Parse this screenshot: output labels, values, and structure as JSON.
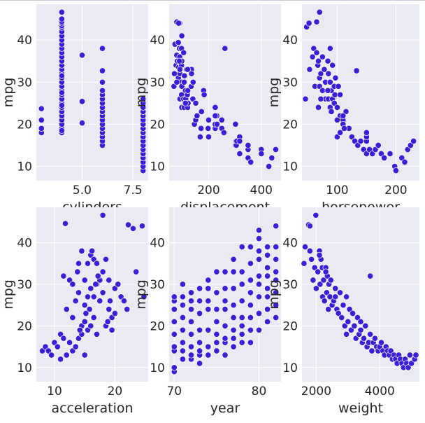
{
  "chart_data": [
    {
      "type": "scatter",
      "xlabel": "cylinders",
      "ylabel": "mpg",
      "xlim": [
        2.75,
        8.25
      ],
      "ylim": [
        6.6,
        48.5
      ],
      "xticks": [
        5.0,
        7.5
      ],
      "xtick_labels": [
        "5.0",
        "7.5"
      ],
      "yticks": [
        10,
        20,
        30,
        40
      ],
      "ytick_labels": [
        "10",
        "20",
        "30",
        "40"
      ],
      "x": [
        3,
        3,
        3,
        3,
        4,
        4,
        4,
        4,
        4,
        4,
        4,
        4,
        4,
        4,
        4,
        4,
        4,
        4,
        4,
        4,
        4,
        4,
        4,
        4,
        4,
        4,
        4,
        4,
        4,
        4,
        4,
        4,
        4,
        4,
        4,
        4,
        4,
        4,
        4,
        5,
        5,
        5,
        6,
        6,
        6,
        6,
        6,
        6,
        6,
        6,
        6,
        6,
        6,
        6,
        6,
        6,
        6,
        6,
        6,
        8,
        8,
        8,
        8,
        8,
        8,
        8,
        8,
        8,
        8,
        8,
        8,
        8,
        8,
        8,
        8,
        8,
        8
      ],
      "y": [
        18,
        19,
        21,
        23.7,
        18,
        19,
        20,
        21,
        22,
        23,
        24,
        25,
        26,
        27,
        28,
        29,
        30,
        31,
        32,
        33,
        34,
        35,
        36,
        37,
        38,
        39,
        40,
        41,
        42,
        43,
        43.4,
        44,
        44.3,
        45,
        46.6,
        18.5,
        24.5,
        27.5,
        31.5,
        20.3,
        25.4,
        36.4,
        15,
        16,
        17,
        18,
        19,
        20,
        21,
        22,
        23,
        24,
        25,
        26,
        27,
        28,
        30,
        32.7,
        38,
        9,
        10,
        11,
        12,
        13,
        14,
        15,
        16,
        17,
        18,
        19,
        20,
        21,
        22,
        23,
        24,
        25,
        26
      ]
    },
    {
      "type": "scatter",
      "xlabel": "displacement",
      "ylabel": "mpg",
      "xlim": [
        50,
        475
      ],
      "ylim": [
        6.6,
        48.5
      ],
      "xticks": [
        200,
        400
      ],
      "xtick_labels": [
        "200",
        "400"
      ],
      "yticks": [
        10,
        20,
        30,
        40
      ],
      "ytick_labels": [
        "10",
        "20",
        "30",
        "40"
      ],
      "x": [
        68,
        70,
        72,
        76,
        79,
        79,
        81,
        85,
        85,
        86,
        89,
        90,
        90,
        91,
        91,
        97,
        97,
        97,
        98,
        98,
        98,
        98,
        105,
        107,
        108,
        112,
        113,
        116,
        119,
        120,
        121,
        122,
        134,
        135,
        140,
        140,
        141,
        146,
        151,
        156,
        168,
        171,
        173,
        181,
        183,
        198,
        200,
        200,
        225,
        225,
        225,
        231,
        232,
        250,
        250,
        258,
        262,
        302,
        302,
        304,
        305,
        307,
        318,
        318,
        318,
        350,
        350,
        350,
        360,
        400,
        400,
        429,
        440,
        455,
        97,
        91,
        89,
        79,
        86,
        105,
        107,
        112,
        120,
        135,
        151,
        225
      ],
      "y": [
        29,
        32,
        39,
        34,
        36.4,
        44.3,
        35,
        39.4,
        31,
        33.5,
        38,
        44,
        36,
        26,
        32,
        27,
        30,
        34,
        24,
        29,
        35,
        41,
        26,
        24,
        31.5,
        28,
        26,
        33,
        27,
        24,
        28,
        25,
        29,
        33,
        26,
        30,
        30,
        20,
        21,
        22,
        17,
        19,
        23,
        28,
        27,
        19,
        21,
        17,
        19,
        20,
        24,
        22,
        20,
        19,
        21,
        18,
        38,
        20,
        15,
        16,
        15,
        16,
        17,
        13,
        16,
        14,
        15,
        12,
        11,
        14,
        13,
        10,
        12,
        14,
        38,
        33,
        35,
        30,
        44,
        37,
        30,
        25,
        33,
        32,
        25,
        22
      ]
    },
    {
      "type": "scatter",
      "xlabel": "horsepower",
      "ylabel": "mpg",
      "xlim": [
        40,
        240
      ],
      "ylim": [
        6.6,
        48.5
      ],
      "xticks": [
        100,
        200
      ],
      "xtick_labels": [
        "100",
        "200"
      ],
      "yticks": [
        10,
        20,
        30,
        40
      ],
      "ytick_labels": [
        "10",
        "20",
        "30",
        "40"
      ],
      "x": [
        46,
        48,
        52,
        53,
        58,
        60,
        62,
        65,
        65,
        67,
        68,
        70,
        70,
        70,
        72,
        75,
        75,
        78,
        80,
        80,
        84,
        85,
        85,
        88,
        88,
        90,
        92,
        95,
        95,
        97,
        100,
        100,
        102,
        105,
        105,
        110,
        110,
        115,
        120,
        125,
        130,
        133,
        135,
        140,
        145,
        150,
        150,
        150,
        155,
        160,
        165,
        170,
        175,
        180,
        190,
        198,
        200,
        210,
        215,
        220,
        225,
        230,
        88,
        92,
        96,
        110,
        112,
        84,
        68,
        72,
        100,
        105,
        90,
        150
      ],
      "y": [
        26,
        43.1,
        44,
        33,
        36,
        38,
        29,
        37,
        44.3,
        34,
        35,
        46.6,
        29,
        31,
        32,
        36,
        28,
        33,
        30,
        26,
        35,
        26,
        32,
        30,
        24,
        28,
        26,
        29,
        25,
        31,
        24,
        17,
        29,
        22,
        18,
        21,
        20,
        23,
        19,
        17,
        16,
        32.7,
        15,
        16,
        14,
        13,
        16,
        17,
        14,
        13,
        14,
        15,
        13,
        12,
        13,
        10,
        9,
        12,
        11,
        14,
        15,
        16,
        38,
        34,
        27,
        22,
        19,
        28,
        24,
        26,
        21,
        27,
        23,
        18
      ]
    },
    {
      "type": "scatter",
      "xlabel": "acceleration",
      "ylabel": "mpg",
      "xlim": [
        7,
        25.5
      ],
      "ylim": [
        6.6,
        48.5
      ],
      "xticks": [
        10,
        20
      ],
      "xtick_labels": [
        "10",
        "20"
      ],
      "yticks": [
        10,
        20,
        30,
        40
      ],
      "ytick_labels": [
        "10",
        "20",
        "30",
        "40"
      ],
      "x": [
        8,
        8.5,
        9,
        9.5,
        10,
        10.5,
        11,
        11,
        11.5,
        11.5,
        12,
        12,
        12.5,
        12.5,
        13,
        13,
        13,
        13.5,
        13.5,
        14,
        14,
        14,
        14.5,
        14.5,
        14.5,
        15,
        15,
        15,
        15,
        15.5,
        15.5,
        15.5,
        16,
        16,
        16,
        16.5,
        16.5,
        16.5,
        17,
        17,
        17,
        17.5,
        17.5,
        18,
        18,
        18,
        18.5,
        18.5,
        19,
        19,
        19.5,
        19.5,
        20,
        20,
        20.5,
        21,
        21.5,
        22,
        22.2,
        23,
        23.5,
        24.5,
        24.8,
        11.8,
        13.8,
        16.2,
        18.8,
        14.2,
        15.8,
        17.2,
        19.2,
        16.8,
        15.2
      ],
      "y": [
        14,
        15,
        14,
        13,
        16,
        15,
        12,
        18,
        17,
        32,
        13,
        24,
        16,
        31,
        14,
        22,
        30,
        15,
        26,
        17,
        28,
        35,
        18,
        20,
        38,
        13,
        21,
        25,
        31,
        19,
        27,
        35,
        20,
        29,
        37,
        22,
        27,
        36,
        18,
        30,
        35,
        26,
        31,
        46.6,
        28,
        33,
        20,
        36,
        24,
        31,
        19,
        22,
        23,
        29,
        30,
        27,
        26,
        24,
        44.3,
        43.4,
        33,
        44,
        27,
        44.6,
        33,
        38,
        21,
        19,
        24,
        32,
        26,
        30,
        23
      ]
    },
    {
      "type": "scatter",
      "xlabel": "year",
      "ylabel": "mpg",
      "xlim": [
        69.4,
        82.6
      ],
      "ylim": [
        6.6,
        48.5
      ],
      "xticks": [
        70,
        80
      ],
      "xtick_labels": [
        "70",
        "80"
      ],
      "x": [
        70,
        70,
        70,
        70,
        70,
        70,
        70,
        70,
        70,
        71,
        71,
        71,
        71,
        71,
        71,
        71,
        71,
        72,
        72,
        72,
        72,
        72,
        72,
        72,
        72,
        73,
        73,
        73,
        73,
        73,
        73,
        73,
        73,
        74,
        74,
        74,
        74,
        74,
        74,
        74,
        75,
        75,
        75,
        75,
        75,
        75,
        75,
        76,
        76,
        76,
        76,
        76,
        76,
        76,
        76,
        77,
        77,
        77,
        77,
        77,
        77,
        77,
        77,
        78,
        78,
        78,
        78,
        78,
        78,
        78,
        78,
        79,
        79,
        79,
        79,
        79,
        79,
        79,
        79,
        80,
        80,
        80,
        80,
        80,
        80,
        80,
        80,
        80,
        81,
        81,
        81,
        81,
        81,
        81,
        81,
        81,
        82,
        82,
        82,
        82,
        82,
        82,
        82,
        82
      ],
      "yticks": [
        10,
        20,
        30,
        40
      ],
      "ytick_labels": [
        "10",
        "20",
        "30",
        "40"
      ],
      "y": [
        9,
        10,
        14,
        15,
        18,
        21,
        24,
        26,
        27,
        12,
        14,
        16,
        19,
        22,
        25,
        27,
        30,
        12,
        13,
        15,
        18,
        21,
        24,
        26,
        28,
        11,
        13,
        14,
        16,
        19,
        23,
        26,
        29,
        13,
        15,
        19,
        24,
        26,
        29,
        31,
        14,
        16,
        18,
        21,
        24,
        28,
        33,
        13,
        16,
        17,
        20,
        24,
        26,
        29,
        33,
        15,
        17,
        19,
        22,
        25,
        29,
        33,
        36,
        16,
        18,
        20,
        22,
        26,
        30,
        33,
        39,
        16,
        19,
        22,
        25,
        28,
        31,
        35,
        39,
        19,
        23,
        27,
        30,
        32,
        36,
        38,
        41,
        43,
        21,
        24,
        27,
        29,
        32,
        34,
        37,
        39,
        22,
        25,
        28,
        31,
        33,
        36,
        39,
        44
      ]
    },
    {
      "type": "scatter",
      "xlabel": "weight",
      "ylabel": "mpg",
      "xlim": [
        1550,
        5250
      ],
      "ylim": [
        6.6,
        48.5
      ],
      "xticks": [
        2000,
        4000
      ],
      "xtick_labels": [
        "2000",
        "4000"
      ],
      "yticks": [
        10,
        20,
        30,
        40
      ],
      "ytick_labels": [
        "10",
        "20",
        "30",
        "40"
      ],
      "x": [
        1613,
        1650,
        1760,
        1800,
        1850,
        1900,
        1950,
        1985,
        2000,
        2050,
        2100,
        2120,
        2150,
        2190,
        2200,
        2230,
        2260,
        2300,
        2330,
        2350,
        2380,
        2400,
        2430,
        2460,
        2500,
        2550,
        2600,
        2650,
        2700,
        2750,
        2800,
        2850,
        2900,
        2950,
        3000,
        3050,
        3100,
        3150,
        3200,
        3250,
        3300,
        3350,
        3400,
        3450,
        3500,
        3550,
        3600,
        3650,
        3700,
        3750,
        3800,
        3850,
        3900,
        3950,
        4000,
        4050,
        4100,
        4150,
        4200,
        4250,
        4300,
        4350,
        4400,
        4450,
        4500,
        4550,
        4600,
        4650,
        4700,
        4750,
        4800,
        4850,
        4900,
        4950,
        5000,
        5100,
        5140,
        1800,
        2100,
        2300,
        2600,
        2950,
        3400,
        3700
      ],
      "y": [
        35,
        39,
        44.3,
        38,
        36,
        31,
        34,
        46.6,
        29,
        33,
        38,
        30,
        36,
        34,
        27,
        31,
        26,
        34,
        28,
        32,
        24,
        30,
        27,
        31,
        25,
        26,
        29,
        24,
        23,
        28,
        22,
        25,
        20,
        27,
        21,
        24,
        19,
        23,
        20,
        17,
        22,
        18,
        19,
        16,
        17,
        20,
        15,
        16,
        18,
        14,
        16,
        17,
        15,
        14,
        15,
        16,
        14,
        13,
        15,
        14,
        13,
        14,
        12,
        13,
        12,
        11,
        13,
        12,
        11,
        10,
        12,
        11,
        10,
        13,
        11,
        12,
        13,
        44,
        37,
        33,
        27,
        18,
        21,
        32
      ]
    }
  ]
}
